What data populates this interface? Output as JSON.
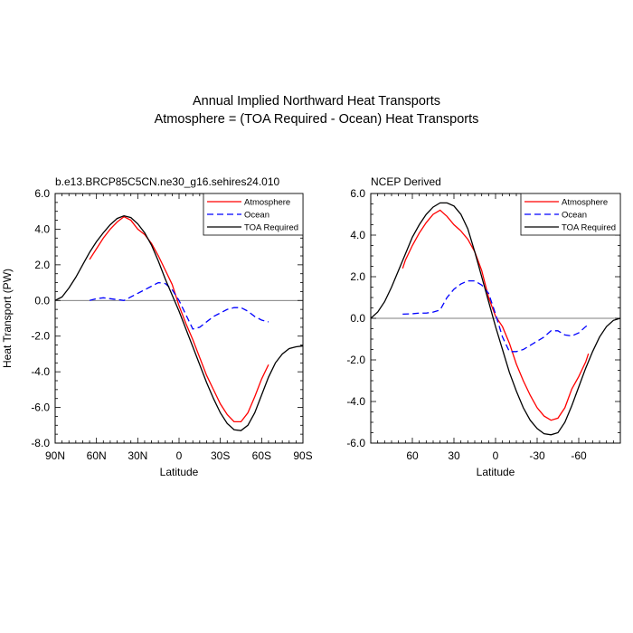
{
  "figure": {
    "title_line1": "Annual Implied Northward Heat Transports",
    "title_line2": "Atmosphere = (TOA Required - Ocean) Heat Transports"
  },
  "chart_data": [
    {
      "type": "line",
      "panel_title": "b.e13.BRCP85C5CN.ne30_g16.sehires24.010",
      "xlabel": "Latitude",
      "ylabel": "Heat Transport (PW)",
      "xlim": [
        90,
        -90
      ],
      "ylim": [
        -8,
        6
      ],
      "xticks": [
        90,
        60,
        30,
        0,
        -30,
        -60,
        -90
      ],
      "xtick_labels": [
        "90N",
        "60N",
        "30N",
        "0",
        "30S",
        "60S",
        "90S"
      ],
      "yticks": [
        -8,
        -6,
        -4,
        -2,
        0,
        2,
        4,
        6
      ],
      "ytick_labels": [
        "-8.0",
        "-6.0",
        "-4.0",
        "-2.0",
        "0.0",
        "2.0",
        "4.0",
        "6.0"
      ],
      "zero_line": true,
      "legend_position": "top-right",
      "series": [
        {
          "name": "Atmosphere",
          "color": "#ff0000",
          "dash": "solid",
          "x": [
            65,
            60,
            55,
            50,
            45,
            40,
            35,
            30,
            25,
            20,
            15,
            10,
            5,
            0,
            -5,
            -10,
            -15,
            -20,
            -25,
            -30,
            -35,
            -40,
            -45,
            -50,
            -55,
            -60,
            -65
          ],
          "y": [
            2.3,
            2.9,
            3.5,
            4.0,
            4.4,
            4.7,
            4.5,
            4.0,
            3.7,
            3.2,
            2.5,
            1.7,
            0.9,
            -0.3,
            -1.3,
            -2.2,
            -3.2,
            -4.2,
            -5.0,
            -5.8,
            -6.4,
            -6.8,
            -6.8,
            -6.3,
            -5.4,
            -4.4,
            -3.6
          ]
        },
        {
          "name": "Ocean",
          "color": "#0000ff",
          "dash": "dashed",
          "x": [
            65,
            60,
            55,
            50,
            45,
            40,
            35,
            30,
            25,
            20,
            15,
            10,
            5,
            0,
            -5,
            -10,
            -15,
            -20,
            -25,
            -30,
            -35,
            -40,
            -45,
            -50,
            -55,
            -60,
            -65
          ],
          "y": [
            0.0,
            0.1,
            0.15,
            0.1,
            0.05,
            0.0,
            0.2,
            0.4,
            0.6,
            0.8,
            1.0,
            0.95,
            0.6,
            0.0,
            -0.8,
            -1.6,
            -1.5,
            -1.2,
            -0.9,
            -0.7,
            -0.5,
            -0.4,
            -0.4,
            -0.6,
            -0.9,
            -1.1,
            -1.2
          ]
        },
        {
          "name": "TOA Required",
          "color": "#000000",
          "dash": "solid",
          "x": [
            90,
            85,
            80,
            75,
            70,
            65,
            60,
            55,
            50,
            45,
            40,
            35,
            30,
            25,
            20,
            15,
            10,
            5,
            0,
            -5,
            -10,
            -15,
            -20,
            -25,
            -30,
            -35,
            -40,
            -45,
            -50,
            -55,
            -60,
            -65,
            -70,
            -75,
            -80,
            -85,
            -90
          ],
          "y": [
            0.0,
            0.2,
            0.7,
            1.3,
            2.0,
            2.7,
            3.3,
            3.8,
            4.25,
            4.6,
            4.75,
            4.65,
            4.3,
            3.8,
            3.1,
            2.2,
            1.2,
            0.3,
            -0.6,
            -1.6,
            -2.6,
            -3.6,
            -4.6,
            -5.5,
            -6.3,
            -6.9,
            -7.25,
            -7.3,
            -7.0,
            -6.3,
            -5.3,
            -4.3,
            -3.5,
            -3.0,
            -2.7,
            -2.6,
            -2.55
          ]
        }
      ]
    },
    {
      "type": "line",
      "panel_title": "NCEP Derived",
      "xlabel": "Latitude",
      "ylabel": "",
      "xlim": [
        90,
        -90
      ],
      "ylim": [
        -6,
        6
      ],
      "xticks": [
        60,
        30,
        0,
        -30,
        -60
      ],
      "xtick_labels": [
        "60",
        "30",
        "0",
        "-30",
        "-60"
      ],
      "yticks": [
        -6,
        -4,
        -2,
        0,
        2,
        4,
        6
      ],
      "ytick_labels": [
        "-6.0",
        "-4.0",
        "-2.0",
        "0.0",
        "2.0",
        "4.0",
        "6.0"
      ],
      "zero_line": true,
      "legend_position": "top-right",
      "series": [
        {
          "name": "Atmosphere",
          "color": "#ff0000",
          "dash": "solid",
          "x": [
            67,
            65,
            60,
            55,
            50,
            45,
            40,
            35,
            30,
            25,
            20,
            15,
            10,
            5,
            0,
            -5,
            -10,
            -15,
            -20,
            -25,
            -30,
            -35,
            -40,
            -45,
            -50,
            -55,
            -60,
            -65,
            -67
          ],
          "y": [
            2.4,
            2.8,
            3.5,
            4.1,
            4.6,
            5.0,
            5.2,
            4.9,
            4.5,
            4.2,
            3.8,
            3.2,
            2.3,
            1.0,
            0.1,
            -0.4,
            -1.2,
            -2.2,
            -3.0,
            -3.7,
            -4.3,
            -4.7,
            -4.9,
            -4.8,
            -4.3,
            -3.4,
            -2.8,
            -2.1,
            -1.7
          ]
        },
        {
          "name": "Ocean",
          "color": "#0000ff",
          "dash": "dashed",
          "x": [
            67,
            60,
            55,
            50,
            45,
            40,
            35,
            30,
            25,
            20,
            15,
            10,
            5,
            0,
            -5,
            -10,
            -15,
            -20,
            -25,
            -30,
            -35,
            -40,
            -45,
            -50,
            -55,
            -60,
            -65,
            -67
          ],
          "y": [
            0.2,
            0.22,
            0.25,
            0.25,
            0.3,
            0.4,
            1.0,
            1.4,
            1.65,
            1.8,
            1.8,
            1.6,
            1.2,
            0.2,
            -0.9,
            -1.6,
            -1.6,
            -1.5,
            -1.3,
            -1.1,
            -0.9,
            -0.6,
            -0.6,
            -0.8,
            -0.85,
            -0.7,
            -0.4,
            -0.3
          ]
        },
        {
          "name": "TOA Required",
          "color": "#000000",
          "dash": "solid",
          "x": [
            90,
            85,
            80,
            75,
            70,
            65,
            60,
            55,
            50,
            45,
            40,
            35,
            30,
            25,
            20,
            15,
            10,
            5,
            0,
            -5,
            -10,
            -15,
            -20,
            -25,
            -30,
            -35,
            -40,
            -45,
            -50,
            -55,
            -60,
            -65,
            -70,
            -75,
            -80,
            -85,
            -90
          ],
          "y": [
            0.0,
            0.3,
            0.8,
            1.5,
            2.3,
            3.1,
            3.9,
            4.5,
            5.0,
            5.35,
            5.55,
            5.55,
            5.4,
            5.0,
            4.3,
            3.2,
            2.0,
            0.8,
            -0.4,
            -1.5,
            -2.6,
            -3.5,
            -4.3,
            -4.9,
            -5.3,
            -5.55,
            -5.6,
            -5.5,
            -5.0,
            -4.2,
            -3.3,
            -2.4,
            -1.6,
            -0.9,
            -0.4,
            -0.1,
            0.0
          ]
        }
      ]
    }
  ]
}
